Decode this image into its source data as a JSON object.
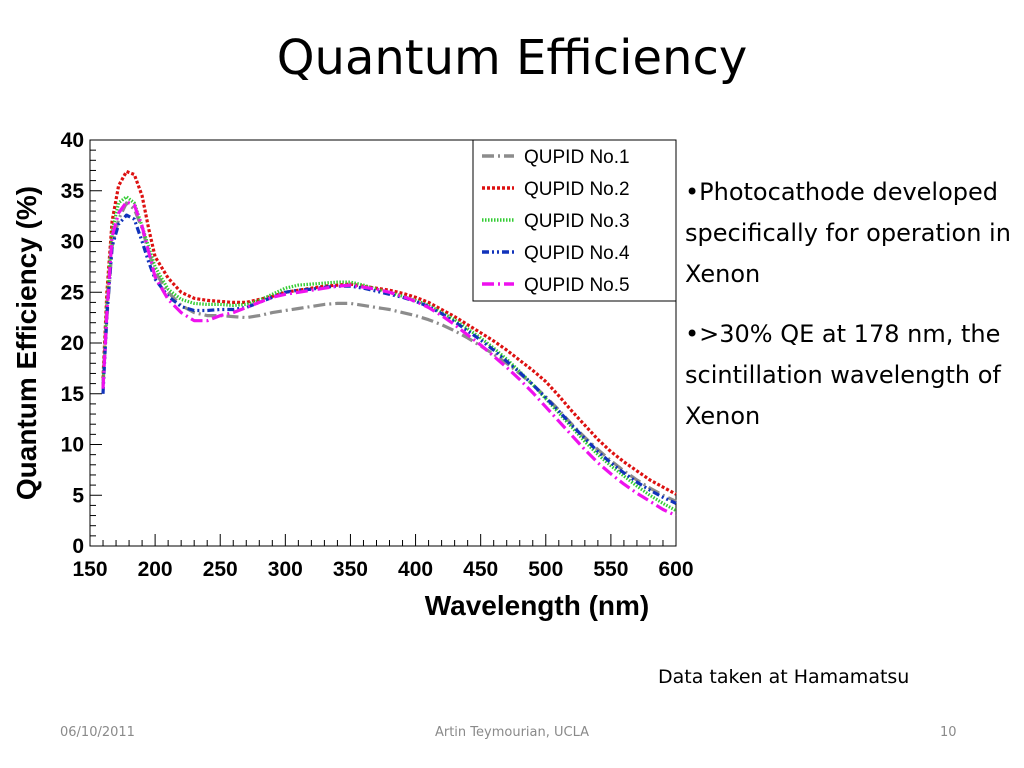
{
  "slide": {
    "title": "Quantum Efficiency",
    "bullets": [
      "•Photocathode developed specifically for operation in Xenon",
      "•>30% QE at 178 nm, the scintillation wavelength of Xenon"
    ],
    "note": "Data taken at Hamamatsu",
    "footer": {
      "date": "06/10/2011",
      "author": "Artin Teymourian, UCLA",
      "page": "10"
    }
  },
  "chart_data": {
    "type": "line",
    "title": "",
    "xlabel": "Wavelength (nm)",
    "ylabel": "Quantum Efficiency (%)",
    "xlim": [
      150,
      600
    ],
    "ylim": [
      0,
      40
    ],
    "xticks": [
      "150",
      "200",
      "250",
      "300",
      "350",
      "400",
      "450",
      "500",
      "550",
      "600"
    ],
    "yticks": [
      "0",
      "5",
      "10",
      "15",
      "20",
      "25",
      "30",
      "35",
      "40"
    ],
    "grid": false,
    "legend_position": "top-right",
    "x": [
      160,
      163,
      167,
      172,
      178,
      184,
      190,
      195,
      200,
      210,
      220,
      230,
      240,
      250,
      260,
      270,
      280,
      290,
      300,
      310,
      320,
      330,
      340,
      350,
      360,
      370,
      380,
      390,
      400,
      410,
      420,
      430,
      440,
      450,
      460,
      470,
      480,
      490,
      500,
      510,
      520,
      530,
      540,
      550,
      560,
      570,
      580,
      590,
      600
    ],
    "series": [
      {
        "name": "QUPID No.1",
        "color": "#8c8c8c",
        "dash": "dashdot",
        "values": [
          15.8,
          22.5,
          29.5,
          32.2,
          33.8,
          33.2,
          31.3,
          29.0,
          27.0,
          25.0,
          23.7,
          23.0,
          22.7,
          22.7,
          22.6,
          22.5,
          22.7,
          23.0,
          23.2,
          23.4,
          23.6,
          23.8,
          23.9,
          23.9,
          23.7,
          23.5,
          23.3,
          23.0,
          22.7,
          22.3,
          21.8,
          21.2,
          20.5,
          19.7,
          18.9,
          18.0,
          17.0,
          15.9,
          14.7,
          13.4,
          12.0,
          10.7,
          9.5,
          8.4,
          7.4,
          6.5,
          5.7,
          5.0,
          4.4
        ]
      },
      {
        "name": "QUPID No.2",
        "color": "#dd1111",
        "dash": "dot",
        "values": [
          16.5,
          25.0,
          32.0,
          35.5,
          36.9,
          36.6,
          34.5,
          31.3,
          28.5,
          26.4,
          25.0,
          24.4,
          24.2,
          24.1,
          24.0,
          24.0,
          24.3,
          24.6,
          25.0,
          25.2,
          25.4,
          25.6,
          25.7,
          25.8,
          25.6,
          25.4,
          25.2,
          24.9,
          24.5,
          24.0,
          23.3,
          22.6,
          21.8,
          21.0,
          20.2,
          19.3,
          18.3,
          17.3,
          16.2,
          14.8,
          13.3,
          11.9,
          10.5,
          9.3,
          8.3,
          7.4,
          6.5,
          5.8,
          5.1
        ]
      },
      {
        "name": "QUPID No.3",
        "color": "#33cc33",
        "dash": "dense",
        "values": [
          16.0,
          24.0,
          31.0,
          33.8,
          34.4,
          33.8,
          31.5,
          29.5,
          27.5,
          25.3,
          24.3,
          23.9,
          23.8,
          23.8,
          23.7,
          23.8,
          24.2,
          24.8,
          25.4,
          25.7,
          25.8,
          25.9,
          26.0,
          26.0,
          25.7,
          25.3,
          25.0,
          24.6,
          24.2,
          23.7,
          23.0,
          22.3,
          21.4,
          20.5,
          19.5,
          18.4,
          17.2,
          15.9,
          14.5,
          13.1,
          11.7,
          10.3,
          9.0,
          7.9,
          6.9,
          5.9,
          5.0,
          4.2,
          3.5
        ]
      },
      {
        "name": "QUPID No.4",
        "color": "#1133bb",
        "dash": "dashdotdot",
        "values": [
          15.0,
          22.8,
          29.5,
          31.7,
          32.6,
          32.2,
          30.0,
          28.0,
          26.3,
          24.6,
          23.6,
          23.2,
          23.2,
          23.3,
          23.3,
          23.5,
          24.0,
          24.5,
          25.0,
          25.2,
          25.3,
          25.5,
          25.6,
          25.6,
          25.4,
          25.1,
          24.8,
          24.5,
          24.1,
          23.6,
          22.9,
          22.1,
          21.2,
          20.3,
          19.3,
          18.2,
          17.1,
          15.9,
          14.6,
          13.3,
          11.9,
          10.6,
          9.3,
          8.2,
          7.2,
          6.3,
          5.5,
          4.8,
          4.2
        ]
      },
      {
        "name": "QUPID No.5",
        "color": "#ee11ee",
        "dash": "dashdot",
        "values": [
          15.5,
          23.0,
          30.5,
          32.8,
          33.9,
          33.6,
          31.5,
          29.0,
          26.5,
          24.3,
          23.0,
          22.2,
          22.2,
          22.7,
          23.0,
          23.5,
          24.0,
          24.5,
          24.8,
          25.0,
          25.2,
          25.4,
          25.6,
          25.7,
          25.5,
          25.3,
          25.0,
          24.6,
          24.1,
          23.5,
          22.7,
          21.8,
          20.8,
          19.8,
          18.7,
          17.6,
          16.4,
          15.1,
          13.7,
          12.3,
          10.9,
          9.5,
          8.2,
          7.1,
          6.1,
          5.2,
          4.4,
          3.6,
          3.0
        ]
      }
    ]
  }
}
